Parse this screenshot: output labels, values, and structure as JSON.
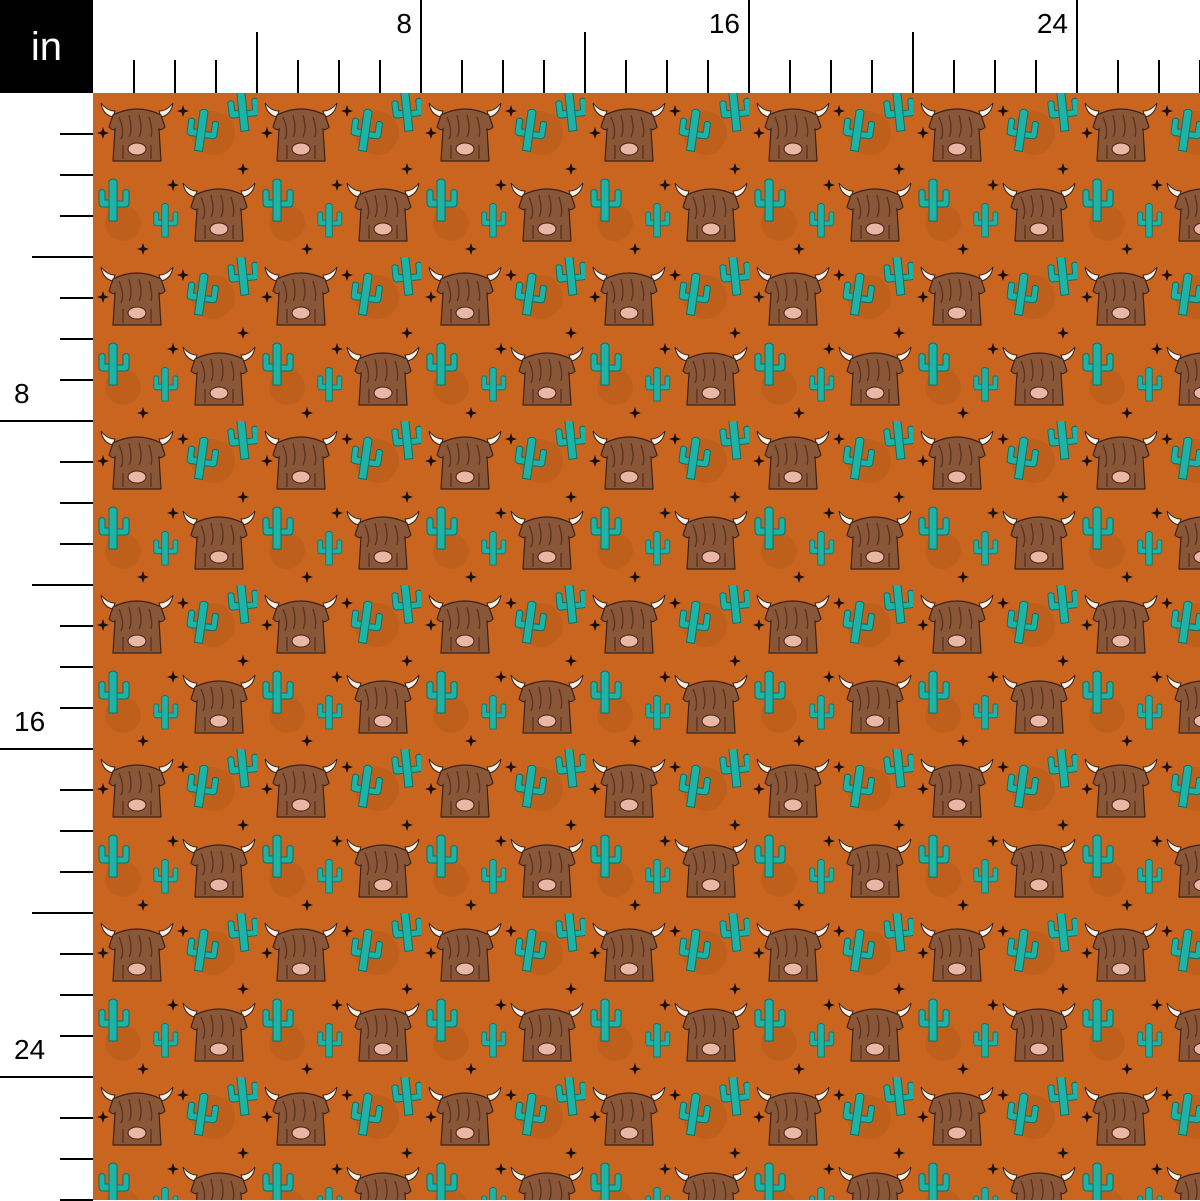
{
  "ruler": {
    "unit_label": "in",
    "top_labels": [
      "8",
      "16",
      "24"
    ],
    "left_labels": [
      "8",
      "16",
      "24"
    ],
    "label_every_inches": 8,
    "major_every_inches": 4
  },
  "fabric": {
    "motifs": [
      "highland-cow-icon",
      "cactus-icon",
      "sparkle-star-icon"
    ],
    "colors": {
      "background": "#c9651f",
      "cactus": "#1fb3a6",
      "cow": "#8a5638",
      "cow_hair": "#5a3420",
      "horn": "#f4f0ea",
      "nose": "#e9b7a4",
      "star": "#1a0d05"
    }
  }
}
